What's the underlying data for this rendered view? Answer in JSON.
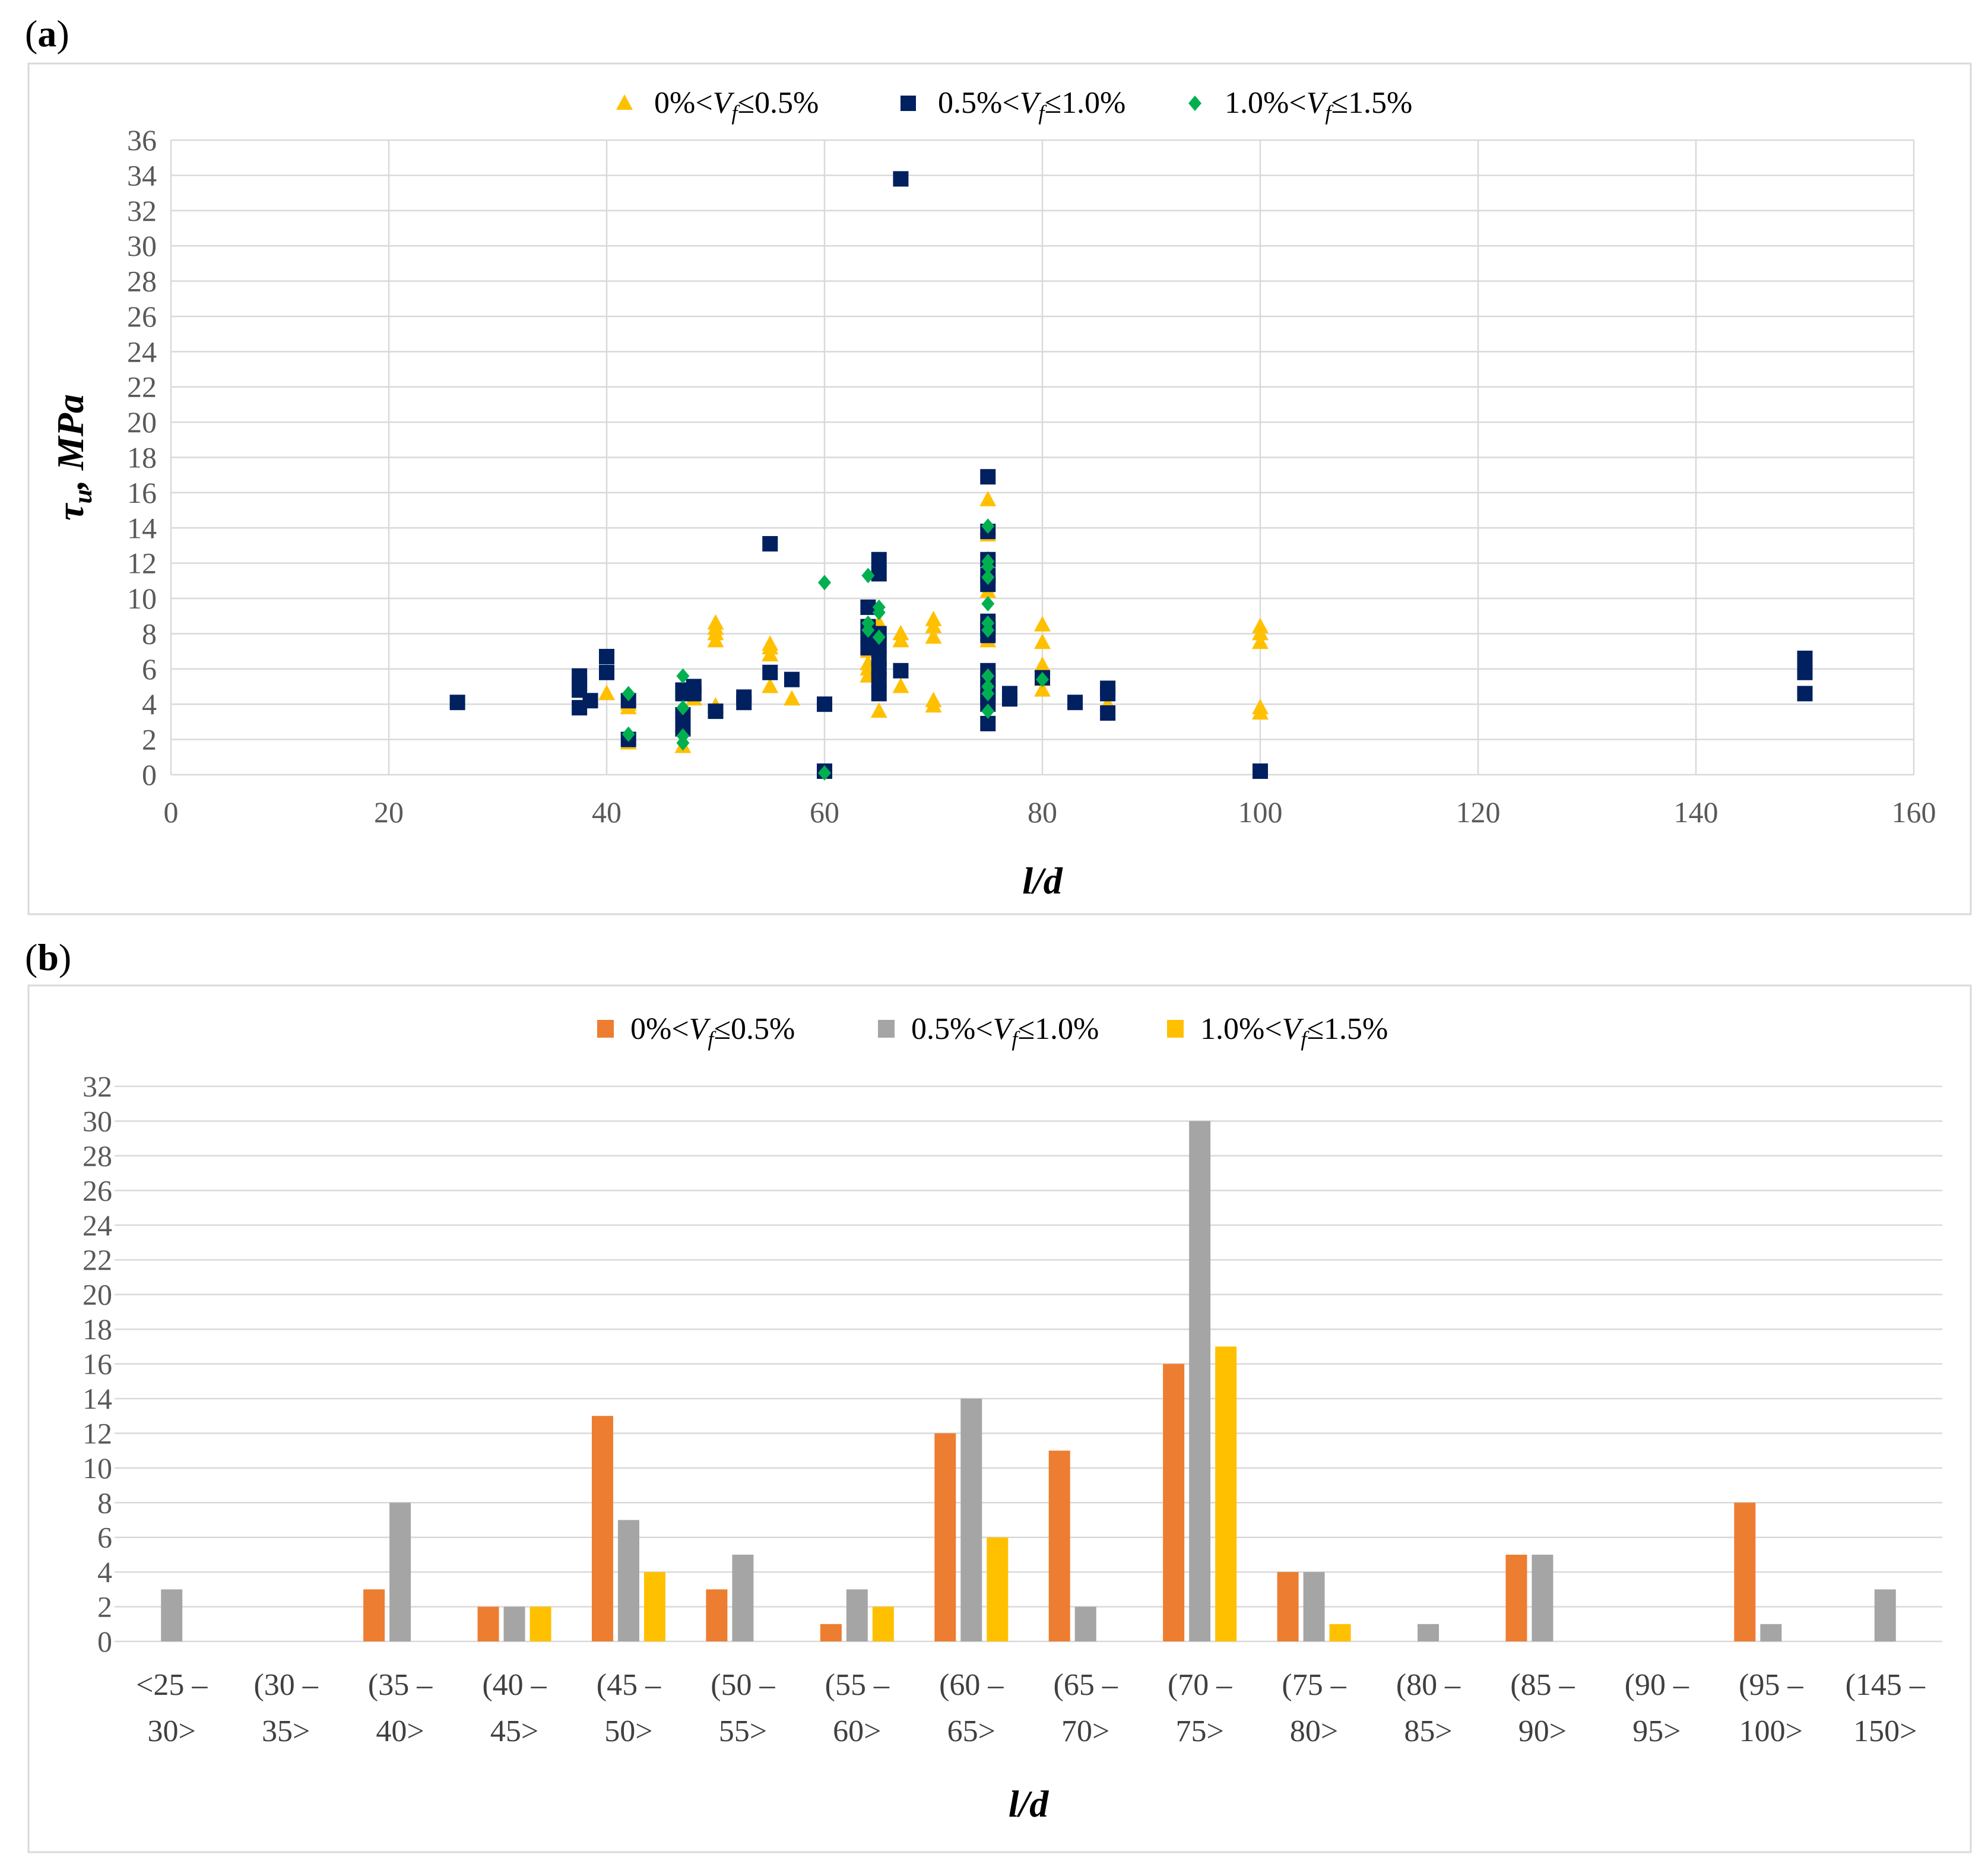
{
  "panels": {
    "a": {
      "label_open": "(",
      "label_letter": "a",
      "label_close": ")"
    },
    "b": {
      "label_open": "(",
      "label_letter": "b",
      "label_close": ")"
    }
  },
  "chart_data": [
    {
      "id": "a",
      "type": "scatter",
      "title": "",
      "xlabel": "l/d",
      "ylabel_symbol": "τ",
      "ylabel_sub": "u",
      "ylabel_rest": ", MPa",
      "xlim": [
        0,
        160
      ],
      "ylim": [
        0,
        36
      ],
      "xticks": [
        0,
        20,
        40,
        60,
        80,
        100,
        120,
        140,
        160
      ],
      "yticks": [
        0,
        2,
        4,
        6,
        8,
        10,
        12,
        14,
        16,
        18,
        20,
        22,
        24,
        26,
        28,
        30,
        32,
        34,
        36
      ],
      "legend_position": "top-center",
      "series": [
        {
          "name": "0%<Vf≤0.5%",
          "legend_pre": "0%<",
          "legend_var": "V",
          "legend_sub": "f",
          "legend_post": "≤0.5%",
          "marker": "triangle",
          "color": "#FFC000",
          "points": [
            [
              40,
              4.6
            ],
            [
              42,
              1.8
            ],
            [
              42,
              4.0
            ],
            [
              42,
              3.8
            ],
            [
              47,
              1.6
            ],
            [
              47,
              2.8
            ],
            [
              47,
              3.6
            ],
            [
              48,
              4.3
            ],
            [
              50,
              3.9
            ],
            [
              50,
              7.6
            ],
            [
              50,
              8.0
            ],
            [
              50,
              8.3
            ],
            [
              50,
              8.6
            ],
            [
              55,
              5.0
            ],
            [
              55,
              6.8
            ],
            [
              55,
              7.2
            ],
            [
              55,
              7.4
            ],
            [
              57,
              4.3
            ],
            [
              64,
              5.6
            ],
            [
              64,
              6.0
            ],
            [
              64,
              6.3
            ],
            [
              64,
              7.0
            ],
            [
              65,
              3.6
            ],
            [
              65,
              7.8
            ],
            [
              65,
              8.6
            ],
            [
              67,
              5.0
            ],
            [
              67,
              7.6
            ],
            [
              67,
              8.0
            ],
            [
              70,
              3.9
            ],
            [
              70,
              4.2
            ],
            [
              70,
              7.8
            ],
            [
              70,
              8.4
            ],
            [
              70,
              8.8
            ],
            [
              75,
              7.6
            ],
            [
              75,
              8.0
            ],
            [
              75,
              10.4
            ],
            [
              75,
              12.2
            ],
            [
              75,
              13.6
            ],
            [
              75,
              14.0
            ],
            [
              75,
              15.6
            ],
            [
              80,
              4.8
            ],
            [
              80,
              5.4
            ],
            [
              80,
              6.2
            ],
            [
              80,
              7.5
            ],
            [
              80,
              8.5
            ],
            [
              86,
              4.0
            ],
            [
              100,
              3.5
            ],
            [
              100,
              3.8
            ],
            [
              100,
              7.5
            ],
            [
              100,
              8.0
            ],
            [
              100,
              8.4
            ]
          ]
        },
        {
          "name": "0.5%<Vf≤1.0%",
          "legend_pre": "0.5%<",
          "legend_var": "V",
          "legend_sub": "f",
          "legend_post": "≤1.0%",
          "marker": "square",
          "color": "#002060",
          "points": [
            [
              26.3,
              4.1
            ],
            [
              37.5,
              3.8
            ],
            [
              37.5,
              4.8
            ],
            [
              37.5,
              5.2
            ],
            [
              37.5,
              5.6
            ],
            [
              38.5,
              4.2
            ],
            [
              40,
              5.8
            ],
            [
              40,
              6.7
            ],
            [
              42,
              2.0
            ],
            [
              42,
              4.2
            ],
            [
              47,
              2.6
            ],
            [
              47,
              3.4
            ],
            [
              47,
              4.6
            ],
            [
              47,
              4.8
            ],
            [
              48,
              4.6
            ],
            [
              48,
              5.0
            ],
            [
              50,
              3.6
            ],
            [
              52.6,
              4.1
            ],
            [
              52.6,
              4.4
            ],
            [
              55,
              5.8
            ],
            [
              55,
              13.1
            ],
            [
              57,
              5.4
            ],
            [
              60,
              0.2
            ],
            [
              60,
              4.0
            ],
            [
              64,
              7.2
            ],
            [
              64,
              7.8
            ],
            [
              64,
              8.4
            ],
            [
              64,
              9.5
            ],
            [
              65,
              4.6
            ],
            [
              65,
              5.4
            ],
            [
              65,
              6.0
            ],
            [
              65,
              6.6
            ],
            [
              65,
              7.4
            ],
            [
              65,
              8.0
            ],
            [
              65,
              11.4
            ],
            [
              65,
              12.2
            ],
            [
              67,
              5.9
            ],
            [
              67,
              33.8
            ],
            [
              75,
              2.9
            ],
            [
              75,
              4.0
            ],
            [
              75,
              4.4
            ],
            [
              75,
              4.9
            ],
            [
              75,
              5.4
            ],
            [
              75,
              5.9
            ],
            [
              75,
              7.9
            ],
            [
              75,
              8.3
            ],
            [
              75,
              8.7
            ],
            [
              75,
              10.8
            ],
            [
              75,
              11.3
            ],
            [
              75,
              12.2
            ],
            [
              75,
              13.8
            ],
            [
              75,
              16.9
            ],
            [
              77,
              4.3
            ],
            [
              77,
              4.6
            ],
            [
              80,
              5.5
            ],
            [
              83,
              4.1
            ],
            [
              86,
              3.5
            ],
            [
              86,
              4.6
            ],
            [
              86,
              4.9
            ],
            [
              100,
              0.2
            ],
            [
              150,
              4.6
            ],
            [
              150,
              5.8
            ],
            [
              150,
              6.3
            ],
            [
              150,
              6.6
            ]
          ]
        },
        {
          "name": "1.0%<Vf≤1.5%",
          "legend_pre": "1.0%<",
          "legend_var": "V",
          "legend_sub": "f",
          "legend_post": "≤1.5%",
          "marker": "diamond",
          "color": "#00B050",
          "points": [
            [
              42,
              2.3
            ],
            [
              42,
              4.6
            ],
            [
              47,
              1.8
            ],
            [
              47,
              2.2
            ],
            [
              47,
              3.8
            ],
            [
              47,
              5.6
            ],
            [
              60,
              0.1
            ],
            [
              60,
              10.9
            ],
            [
              64,
              8.2
            ],
            [
              64,
              8.6
            ],
            [
              64,
              11.3
            ],
            [
              65,
              7.8
            ],
            [
              65,
              9.2
            ],
            [
              65,
              9.5
            ],
            [
              75,
              3.6
            ],
            [
              75,
              4.6
            ],
            [
              75,
              5.0
            ],
            [
              75,
              5.6
            ],
            [
              75,
              8.2
            ],
            [
              75,
              8.6
            ],
            [
              75,
              9.7
            ],
            [
              75,
              11.2
            ],
            [
              75,
              11.8
            ],
            [
              75,
              12.1
            ],
            [
              75,
              14.1
            ],
            [
              80,
              5.4
            ]
          ]
        }
      ]
    },
    {
      "id": "b",
      "type": "bar",
      "title": "",
      "xlabel": "l/d",
      "ylabel": "",
      "ylim": [
        0,
        32
      ],
      "yticks": [
        0,
        2,
        4,
        6,
        8,
        10,
        12,
        14,
        16,
        18,
        20,
        22,
        24,
        26,
        28,
        30,
        32
      ],
      "legend_position": "top-center",
      "categories": [
        [
          "<25 –",
          "30>"
        ],
        [
          "(30 –",
          "35>"
        ],
        [
          "(35 –",
          "40>"
        ],
        [
          "(40 –",
          "45>"
        ],
        [
          "(45 –",
          "50>"
        ],
        [
          "(50 –",
          "55>"
        ],
        [
          "(55 –",
          "60>"
        ],
        [
          "(60 –",
          "65>"
        ],
        [
          "(65 –",
          "70>"
        ],
        [
          "(70 –",
          "75>"
        ],
        [
          "(75 –",
          "80>"
        ],
        [
          "(80 –",
          "85>"
        ],
        [
          "(85 –",
          "90>"
        ],
        [
          "(90 –",
          "95>"
        ],
        [
          "(95 –",
          "100>"
        ],
        [
          "(145 –",
          "150>"
        ]
      ],
      "series": [
        {
          "name": "0%<Vf≤0.5%",
          "legend_pre": "0%<",
          "legend_var": "V",
          "legend_sub": "f",
          "legend_post": "≤0.5%",
          "color": "#ED7D31",
          "values": [
            0,
            0,
            3,
            2,
            13,
            3,
            1,
            12,
            11,
            16,
            4,
            0,
            5,
            0,
            8,
            0
          ]
        },
        {
          "name": "0.5%<Vf≤1.0%",
          "legend_pre": "0.5%<",
          "legend_var": "V",
          "legend_sub": "f",
          "legend_post": "≤1.0%",
          "color": "#A5A5A5",
          "values": [
            3,
            0,
            8,
            2,
            7,
            5,
            3,
            14,
            2,
            30,
            4,
            1,
            5,
            0,
            1,
            3
          ]
        },
        {
          "name": "1.0%<Vf≤1.5%",
          "legend_pre": "1.0%<",
          "legend_var": "V",
          "legend_sub": "f",
          "legend_post": "≤1.5%",
          "color": "#FFC000",
          "values": [
            0,
            0,
            0,
            2,
            4,
            0,
            2,
            6,
            0,
            17,
            1,
            0,
            0,
            0,
            0,
            0
          ]
        }
      ]
    }
  ]
}
